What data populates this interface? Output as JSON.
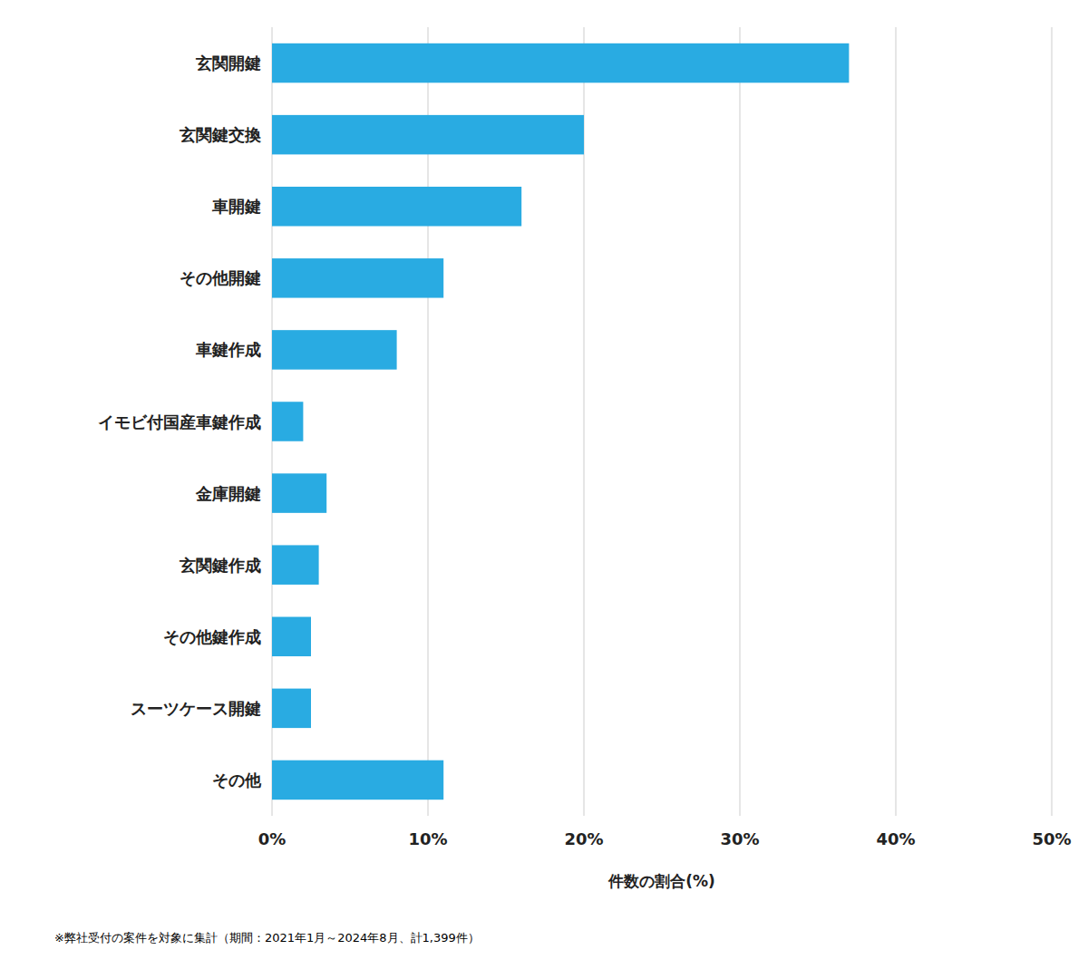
{
  "chart_data": {
    "type": "bar",
    "orientation": "horizontal",
    "categories": [
      "その他",
      "スーツケース開鍵",
      "その他鍵作成",
      "玄関鍵作成",
      "金庫開鍵",
      "イモビ付国産車鍵作成",
      "車鍵作成",
      "その他開鍵",
      "車開鍵",
      "玄関鍵交換",
      "玄関開鍵"
    ],
    "values": [
      11.0,
      2.5,
      2.5,
      3.0,
      3.5,
      2.0,
      8.0,
      11.0,
      16.0,
      20.0,
      37.0
    ],
    "color": "#29abe2",
    "xlabel": "件数の割合(%)",
    "xlim": [
      0,
      50
    ],
    "xticks": [
      {
        "value": 0,
        "label": "0%"
      },
      {
        "value": 10,
        "label": "10%"
      },
      {
        "value": 20,
        "label": "20%"
      },
      {
        "value": 30,
        "label": "30%"
      },
      {
        "value": 40,
        "label": "40%"
      },
      {
        "value": 50,
        "label": "50%"
      }
    ],
    "grid": true,
    "footnote": "※弊社受付の案件を対象に集計（期間：2021年1月～2024年8月、計1,399件）"
  }
}
